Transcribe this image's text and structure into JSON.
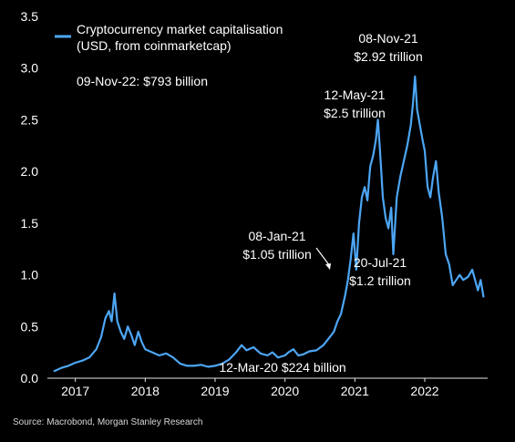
{
  "chart_data": {
    "type": "line",
    "title": "",
    "xlabel": "",
    "ylabel": "",
    "xlim": [
      2016.6,
      2022.9
    ],
    "ylim": [
      0,
      3.5
    ],
    "yticks": [
      "0.0",
      "0.5",
      "1.0",
      "1.5",
      "2.0",
      "2.5",
      "3.0",
      "3.5"
    ],
    "xticks": [
      {
        "label": "2017",
        "x": 2017.0
      },
      {
        "label": "2018",
        "x": 2018.0
      },
      {
        "label": "2019",
        "x": 2019.0
      },
      {
        "label": "2020",
        "x": 2020.0
      },
      {
        "label": "2021",
        "x": 2021.0
      },
      {
        "label": "2022",
        "x": 2022.0
      }
    ],
    "grid": false,
    "legend": {
      "placement": "top-left",
      "line1": "Cryptocurrency market capitalisation",
      "line2": "(USD, from coinmarketcap)"
    },
    "series": [
      {
        "color": "#4da6f5",
        "points": [
          [
            2016.7,
            0.07
          ],
          [
            2016.8,
            0.1
          ],
          [
            2016.9,
            0.12
          ],
          [
            2017.0,
            0.15
          ],
          [
            2017.1,
            0.17
          ],
          [
            2017.2,
            0.2
          ],
          [
            2017.3,
            0.28
          ],
          [
            2017.37,
            0.4
          ],
          [
            2017.43,
            0.58
          ],
          [
            2017.48,
            0.65
          ],
          [
            2017.52,
            0.55
          ],
          [
            2017.56,
            0.82
          ],
          [
            2017.6,
            0.55
          ],
          [
            2017.65,
            0.45
          ],
          [
            2017.7,
            0.38
          ],
          [
            2017.75,
            0.5
          ],
          [
            2017.8,
            0.42
          ],
          [
            2017.85,
            0.32
          ],
          [
            2017.9,
            0.45
          ],
          [
            2017.95,
            0.35
          ],
          [
            2018.0,
            0.28
          ],
          [
            2018.1,
            0.25
          ],
          [
            2018.2,
            0.22
          ],
          [
            2018.3,
            0.24
          ],
          [
            2018.4,
            0.2
          ],
          [
            2018.5,
            0.14
          ],
          [
            2018.6,
            0.12
          ],
          [
            2018.7,
            0.12
          ],
          [
            2018.8,
            0.13
          ],
          [
            2018.9,
            0.11
          ],
          [
            2019.0,
            0.12
          ],
          [
            2019.1,
            0.14
          ],
          [
            2019.2,
            0.18
          ],
          [
            2019.3,
            0.25
          ],
          [
            2019.38,
            0.32
          ],
          [
            2019.45,
            0.27
          ],
          [
            2019.55,
            0.3
          ],
          [
            2019.65,
            0.24
          ],
          [
            2019.75,
            0.22
          ],
          [
            2019.82,
            0.25
          ],
          [
            2019.9,
            0.2
          ],
          [
            2020.0,
            0.22
          ],
          [
            2020.05,
            0.25
          ],
          [
            2020.12,
            0.28
          ],
          [
            2020.19,
            0.22
          ],
          [
            2020.26,
            0.23
          ],
          [
            2020.35,
            0.26
          ],
          [
            2020.45,
            0.27
          ],
          [
            2020.55,
            0.32
          ],
          [
            2020.62,
            0.38
          ],
          [
            2020.7,
            0.45
          ],
          [
            2020.75,
            0.55
          ],
          [
            2020.8,
            0.62
          ],
          [
            2020.86,
            0.8
          ],
          [
            2020.9,
            0.95
          ],
          [
            2020.94,
            1.15
          ],
          [
            2020.98,
            1.4
          ],
          [
            2021.02,
            1.05
          ],
          [
            2021.06,
            1.5
          ],
          [
            2021.1,
            1.75
          ],
          [
            2021.14,
            1.85
          ],
          [
            2021.18,
            1.72
          ],
          [
            2021.22,
            2.05
          ],
          [
            2021.26,
            2.15
          ],
          [
            2021.3,
            2.3
          ],
          [
            2021.33,
            2.5
          ],
          [
            2021.36,
            2.2
          ],
          [
            2021.4,
            1.75
          ],
          [
            2021.44,
            1.55
          ],
          [
            2021.48,
            1.45
          ],
          [
            2021.52,
            1.65
          ],
          [
            2021.55,
            1.2
          ],
          [
            2021.6,
            1.75
          ],
          [
            2021.65,
            1.95
          ],
          [
            2021.7,
            2.1
          ],
          [
            2021.75,
            2.25
          ],
          [
            2021.8,
            2.45
          ],
          [
            2021.83,
            2.65
          ],
          [
            2021.86,
            2.92
          ],
          [
            2021.89,
            2.6
          ],
          [
            2021.93,
            2.45
          ],
          [
            2021.97,
            2.3
          ],
          [
            2022.0,
            2.2
          ],
          [
            2022.04,
            1.85
          ],
          [
            2022.08,
            1.75
          ],
          [
            2022.12,
            1.95
          ],
          [
            2022.16,
            2.1
          ],
          [
            2022.2,
            1.8
          ],
          [
            2022.25,
            1.55
          ],
          [
            2022.3,
            1.2
          ],
          [
            2022.35,
            1.1
          ],
          [
            2022.4,
            0.9
          ],
          [
            2022.45,
            0.95
          ],
          [
            2022.5,
            1.0
          ],
          [
            2022.55,
            0.95
          ],
          [
            2022.62,
            0.98
          ],
          [
            2022.68,
            1.05
          ],
          [
            2022.72,
            0.95
          ],
          [
            2022.76,
            0.85
          ],
          [
            2022.8,
            0.95
          ],
          [
            2022.84,
            0.79
          ]
        ]
      }
    ],
    "annotations": [
      {
        "text": "09-Nov-22: $793 billion"
      },
      {
        "text": "08-Nov-21",
        "line2": "$2.92 trillion"
      },
      {
        "text": "12-May-21",
        "line2": "$2.5 trillion"
      },
      {
        "text": "08-Jan-21",
        "line2": "$1.05 trillion"
      },
      {
        "text": "20-Jul-21",
        "line2": "$1.2 trillion"
      },
      {
        "text": "12-Mar-20 $224 billion"
      }
    ],
    "source": "Source: Macrobond, Morgan Stanley Research"
  }
}
